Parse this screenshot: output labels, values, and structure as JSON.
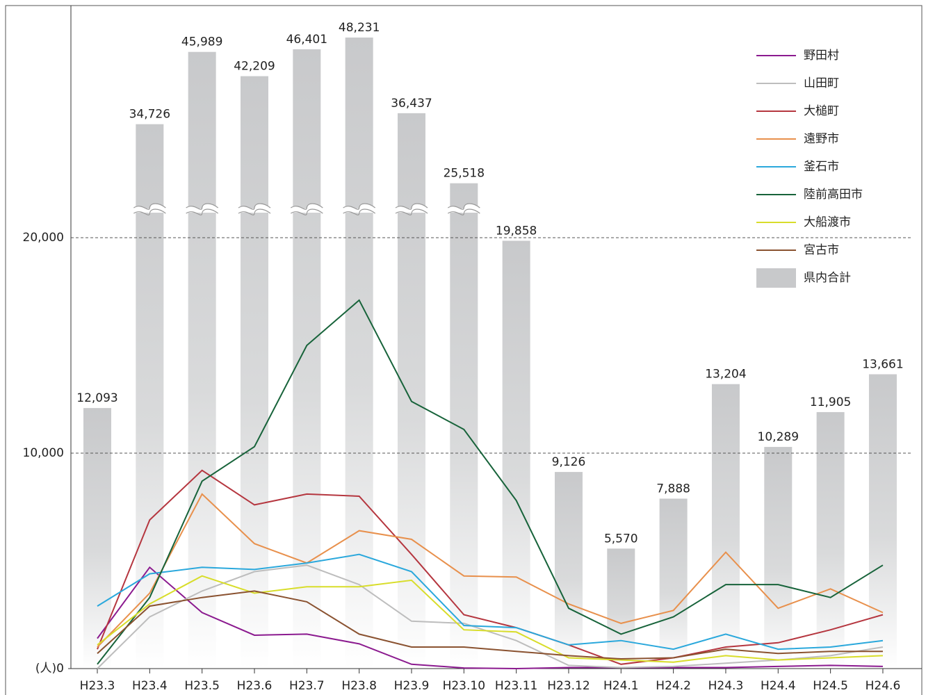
{
  "chart_data": {
    "type": "bar-line",
    "categories": [
      "H23.3",
      "H23.4",
      "H23.5",
      "H23.6",
      "H23.7",
      "H23.8",
      "H23.9",
      "H23.10",
      "H23.11",
      "H23.12",
      "H24.1",
      "H24.2",
      "H24.3",
      "H24.4",
      "H24.5",
      "H24.6"
    ],
    "bars": {
      "name": "県内合計",
      "color": "#c8c9cb",
      "values": [
        12093,
        34726,
        45989,
        42209,
        46401,
        48231,
        36437,
        25518,
        19858,
        9126,
        5570,
        7888,
        13204,
        10289,
        11905,
        13661
      ],
      "value_labels": [
        "12,093",
        "34,726",
        "45,989",
        "42,209",
        "46,401",
        "48,231",
        "36,437",
        "25,518",
        "19,858",
        "9,126",
        "5,570",
        "7,888",
        "13,204",
        "10,289",
        "11,905",
        "13,661"
      ]
    },
    "series": [
      {
        "name": "野田村",
        "color": "#8b1a8f",
        "values": [
          1400,
          4700,
          2600,
          1550,
          1600,
          1150,
          200,
          30,
          0,
          50,
          50,
          50,
          50,
          100,
          150,
          100
        ]
      },
      {
        "name": "山田町",
        "color": "#bdbdbd",
        "values": [
          0,
          2400,
          3600,
          4500,
          4800,
          3900,
          2200,
          2100,
          1300,
          150,
          50,
          100,
          250,
          400,
          600,
          1000
        ]
      },
      {
        "name": "大槌町",
        "color": "#b5363f",
        "values": [
          900,
          6900,
          9200,
          7600,
          8100,
          8000,
          5300,
          2500,
          1900,
          1100,
          200,
          500,
          1000,
          1200,
          1800,
          2500
        ]
      },
      {
        "name": "遠野市",
        "color": "#e8904c",
        "values": [
          1000,
          3500,
          8100,
          5800,
          4900,
          6400,
          6000,
          4300,
          4250,
          3000,
          2100,
          2700,
          5400,
          2800,
          3700,
          2600
        ]
      },
      {
        "name": "釜石市",
        "color": "#2aa8dc",
        "values": [
          2900,
          4400,
          4700,
          4600,
          4900,
          5300,
          4500,
          2000,
          1900,
          1100,
          1300,
          900,
          1600,
          900,
          1000,
          1300
        ]
      },
      {
        "name": "陸前高田市",
        "color": "#17633a",
        "values": [
          200,
          3300,
          8700,
          10300,
          15000,
          17100,
          12400,
          11100,
          7800,
          2800,
          1600,
          2400,
          3900,
          3900,
          3300,
          4800
        ]
      },
      {
        "name": "大船渡市",
        "color": "#d8dd2a",
        "values": [
          1100,
          3000,
          4300,
          3500,
          3800,
          3800,
          4100,
          1800,
          1700,
          500,
          400,
          300,
          600,
          400,
          500,
          600
        ]
      },
      {
        "name": "宮古市",
        "color": "#8a5230",
        "values": [
          700,
          2900,
          3300,
          3600,
          3100,
          1600,
          1000,
          1000,
          800,
          600,
          450,
          500,
          900,
          700,
          800,
          800
        ]
      }
    ],
    "ylim": [
      0,
      31000
    ],
    "yticks": [
      {
        "value": 0,
        "label": "(人)0"
      },
      {
        "value": 10000,
        "label": "10,000"
      },
      {
        "value": 20000,
        "label": "20,000"
      }
    ],
    "grid": true,
    "axis_break": true,
    "legend": "upper right"
  }
}
